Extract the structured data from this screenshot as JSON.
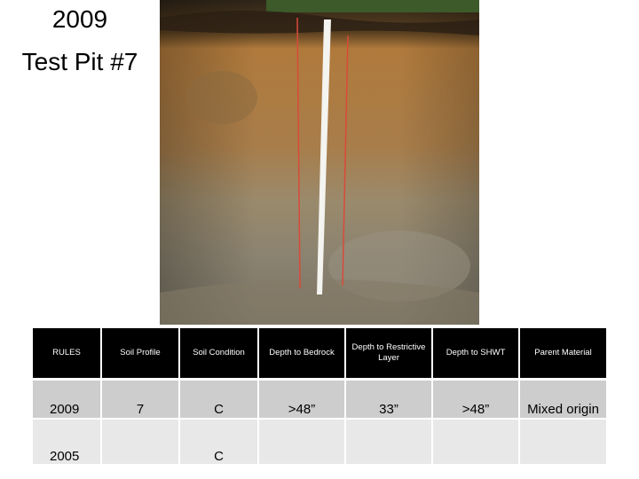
{
  "header": {
    "title": [
      "2009",
      "Test Pit #7"
    ]
  },
  "table": {
    "header": [
      "RULES",
      "Soil Profile",
      "Soil Condition",
      "Depth to Bedrock",
      "Depth to Restrictive Layer",
      "Depth to SHWT",
      "Parent Material"
    ],
    "rows": [
      [
        "2009",
        "7",
        "C",
        ">48”",
        "33”",
        ">48”",
        "Mixed origin"
      ],
      [
        "2005",
        null,
        "C",
        null,
        null,
        null,
        null
      ]
    ]
  }
}
